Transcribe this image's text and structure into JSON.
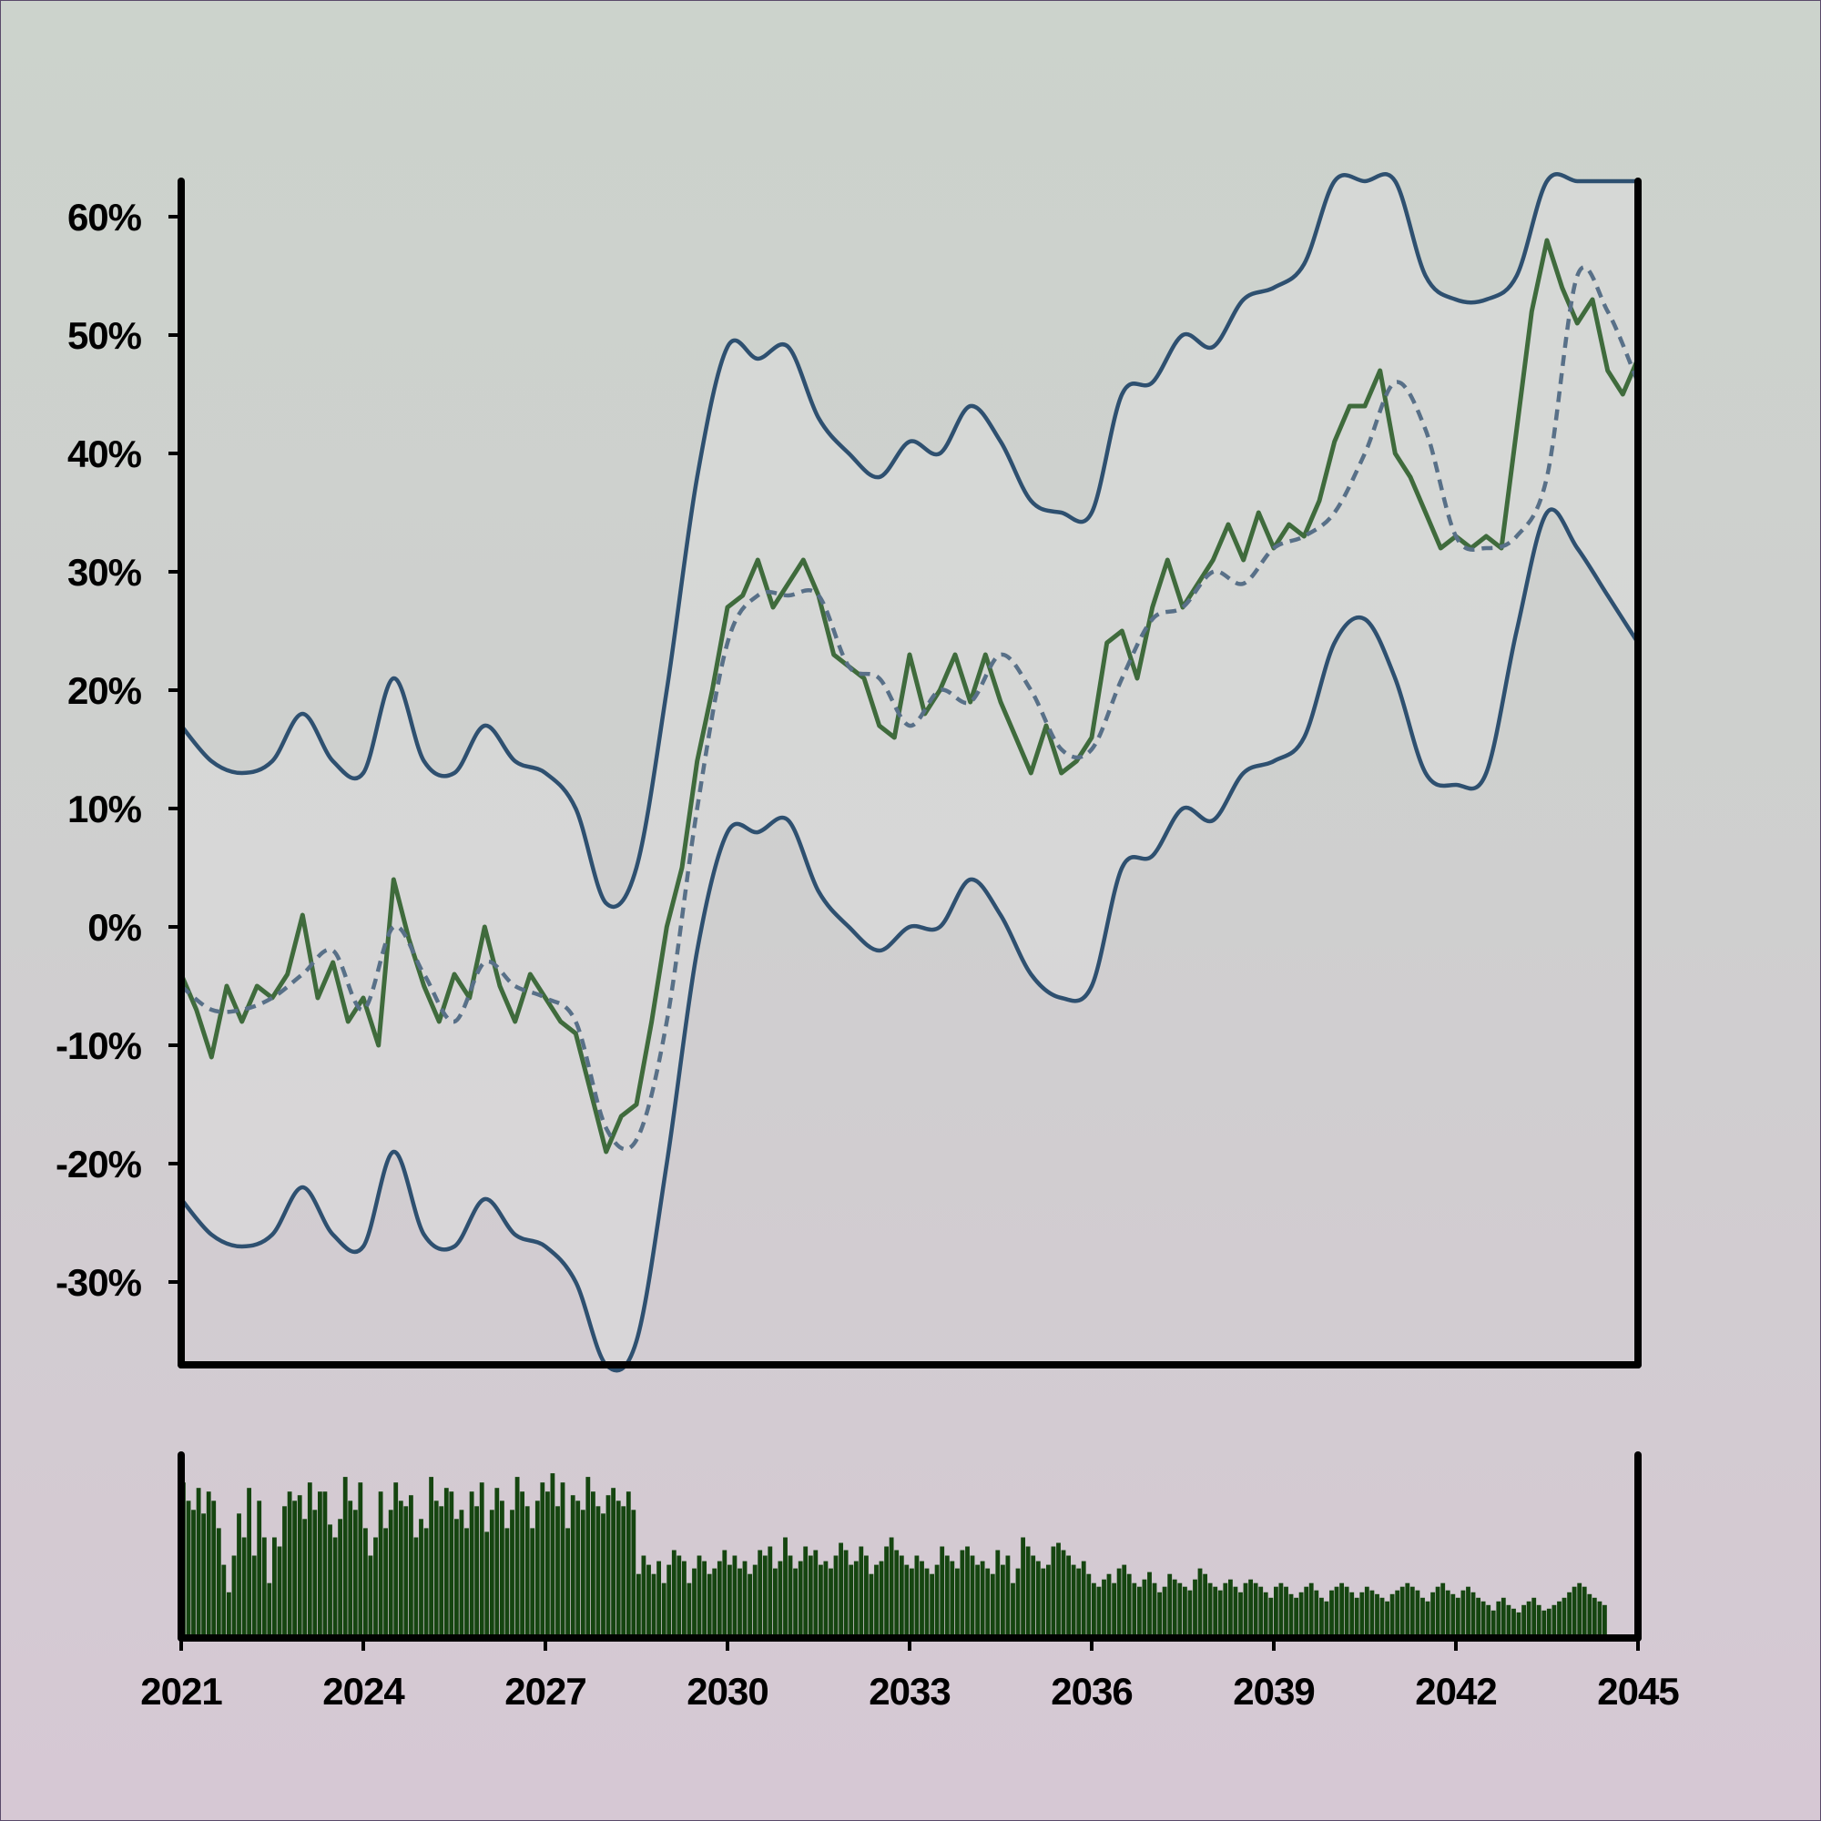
{
  "chart_data": [
    {
      "type": "line",
      "title": "",
      "xlabel": "",
      "ylabel": "",
      "xlim": [
        2021,
        2045
      ],
      "ylim": [
        -37,
        63
      ],
      "y_ticks": [
        {
          "value": 60,
          "label": "60%"
        },
        {
          "value": 50,
          "label": "50%"
        },
        {
          "value": 40,
          "label": "40%"
        },
        {
          "value": 30,
          "label": "30%"
        },
        {
          "value": 20,
          "label": "20%"
        },
        {
          "value": 10,
          "label": "10%"
        },
        {
          "value": 0,
          "label": "0%"
        },
        {
          "value": -10,
          "label": "-10%"
        },
        {
          "value": -20,
          "label": "-20%"
        },
        {
          "value": -30,
          "label": "-30%"
        }
      ],
      "grid": false,
      "legend": "none",
      "colors": {
        "value": "#3f6b3c",
        "moving_average": "#587088",
        "band": "#2e5070",
        "band_fill": "#dcdcdc"
      },
      "series": [
        {
          "style": "solid",
          "x": [
            2021.0,
            2021.25,
            2021.5,
            2021.75,
            2022.0,
            2022.25,
            2022.5,
            2022.75,
            2023.0,
            2023.25,
            2023.5,
            2023.75,
            2024.0,
            2024.25,
            2024.5,
            2024.75,
            2025.0,
            2025.25,
            2025.5,
            2025.75,
            2026.0,
            2026.25,
            2026.5,
            2026.75,
            2027.0,
            2027.25,
            2027.5,
            2027.75,
            2028.0,
            2028.25,
            2028.5,
            2028.75,
            2029.0,
            2029.25,
            2029.5,
            2029.75,
            2030.0,
            2030.25,
            2030.5,
            2030.75,
            2031.0,
            2031.25,
            2031.5,
            2031.75,
            2032.0,
            2032.25,
            2032.5,
            2032.75,
            2033.0,
            2033.25,
            2033.5,
            2033.75,
            2034.0,
            2034.25,
            2034.5,
            2034.75,
            2035.0,
            2035.25,
            2035.5,
            2035.75,
            2036.0,
            2036.25,
            2036.5,
            2036.75,
            2037.0,
            2037.25,
            2037.5,
            2037.75,
            2038.0,
            2038.25,
            2038.5,
            2038.75,
            2039.0,
            2039.25,
            2039.5,
            2039.75,
            2040.0,
            2040.25,
            2040.5,
            2040.75,
            2041.0,
            2041.25,
            2041.5,
            2041.75,
            2042.0,
            2042.25,
            2042.5,
            2042.75,
            2043.0,
            2043.25,
            2043.5,
            2043.75,
            2044.0,
            2044.25,
            2044.5,
            2044.75,
            2045.0
          ],
          "values": [
            -4,
            -7,
            -11,
            -5,
            -8,
            -5,
            -6,
            -4,
            1,
            -6,
            -3,
            -8,
            -6,
            -10,
            4,
            -1,
            -5,
            -8,
            -4,
            -6,
            0,
            -5,
            -8,
            -4,
            -6,
            -8,
            -9,
            -14,
            -19,
            -16,
            -15,
            -8,
            0,
            5,
            14,
            20,
            27,
            28,
            31,
            27,
            29,
            31,
            28,
            23,
            22,
            21,
            17,
            16,
            23,
            18,
            20,
            23,
            19,
            23,
            19,
            16,
            13,
            17,
            13,
            14,
            16,
            24,
            25,
            21,
            27,
            31,
            27,
            29,
            31,
            34,
            31,
            35,
            32,
            34,
            33,
            36,
            41,
            44,
            44,
            47,
            40,
            38,
            35,
            32,
            33,
            32,
            33,
            32,
            42,
            52,
            58,
            54,
            51,
            53,
            47,
            45,
            48
          ]
        },
        {
          "style": "dashed",
          "x": [
            2021.0,
            2021.5,
            2022.0,
            2022.5,
            2023.0,
            2023.5,
            2024.0,
            2024.5,
            2025.0,
            2025.5,
            2026.0,
            2026.5,
            2027.0,
            2027.5,
            2028.0,
            2028.5,
            2029.0,
            2029.5,
            2030.0,
            2030.5,
            2031.0,
            2031.5,
            2032.0,
            2032.5,
            2033.0,
            2033.5,
            2034.0,
            2034.5,
            2035.0,
            2035.5,
            2036.0,
            2036.5,
            2037.0,
            2037.5,
            2038.0,
            2038.5,
            2039.0,
            2039.5,
            2040.0,
            2040.5,
            2041.0,
            2041.5,
            2042.0,
            2042.5,
            2043.0,
            2043.5,
            2044.0,
            2044.5,
            2045.0
          ],
          "values": [
            -5,
            -7,
            -7,
            -6,
            -4,
            -2,
            -7,
            0,
            -4,
            -8,
            -3,
            -5,
            -6,
            -8,
            -17,
            -18,
            -8,
            10,
            24,
            28,
            28,
            28,
            22,
            21,
            17,
            20,
            19,
            23,
            20,
            15,
            15,
            21,
            26,
            27,
            30,
            29,
            32,
            33,
            35,
            40,
            46,
            42,
            33,
            32,
            33,
            38,
            55,
            52,
            46
          ]
        },
        {
          "style": "band-upper",
          "x": [
            2021.0,
            2021.5,
            2022.0,
            2022.5,
            2023.0,
            2023.5,
            2024.0,
            2024.5,
            2025.0,
            2025.5,
            2026.0,
            2026.5,
            2027.0,
            2027.5,
            2028.0,
            2028.5,
            2029.0,
            2029.5,
            2030.0,
            2030.5,
            2031.0,
            2031.5,
            2032.0,
            2032.5,
            2033.0,
            2033.5,
            2034.0,
            2034.5,
            2035.0,
            2035.5,
            2036.0,
            2036.5,
            2037.0,
            2037.5,
            2038.0,
            2038.5,
            2039.0,
            2039.5,
            2040.0,
            2040.5,
            2041.0,
            2041.5,
            2042.0,
            2042.5,
            2043.0,
            2043.5,
            2044.0,
            2044.5,
            2045.0
          ],
          "values": [
            17,
            14,
            13,
            14,
            18,
            14,
            13,
            21,
            14,
            13,
            17,
            14,
            13,
            10,
            2,
            5,
            20,
            38,
            49,
            48,
            49,
            43,
            40,
            38,
            41,
            40,
            44,
            41,
            36,
            35,
            35,
            45,
            46,
            50,
            49,
            53,
            54,
            56,
            63,
            63,
            63,
            55,
            53,
            53,
            55,
            63,
            63,
            63,
            63
          ]
        },
        {
          "style": "band-lower",
          "x": [
            2021.0,
            2021.5,
            2022.0,
            2022.5,
            2023.0,
            2023.5,
            2024.0,
            2024.5,
            2025.0,
            2025.5,
            2026.0,
            2026.5,
            2027.0,
            2027.5,
            2028.0,
            2028.5,
            2029.0,
            2029.5,
            2030.0,
            2030.5,
            2031.0,
            2031.5,
            2032.0,
            2032.5,
            2033.0,
            2033.5,
            2034.0,
            2034.5,
            2035.0,
            2035.5,
            2036.0,
            2036.5,
            2037.0,
            2037.5,
            2038.0,
            2038.5,
            2039.0,
            2039.5,
            2040.0,
            2040.5,
            2041.0,
            2041.5,
            2042.0,
            2042.5,
            2043.0,
            2043.5,
            2044.0,
            2044.5,
            2045.0
          ],
          "values": [
            -23,
            -26,
            -27,
            -26,
            -22,
            -26,
            -27,
            -19,
            -26,
            -27,
            -23,
            -26,
            -27,
            -30,
            -38,
            -35,
            -20,
            -2,
            8,
            8,
            9,
            3,
            0,
            -2,
            0,
            0,
            4,
            1,
            -4,
            -6,
            -5,
            5,
            6,
            10,
            9,
            13,
            14,
            16,
            24,
            26,
            21,
            13,
            12,
            13,
            25,
            35,
            32,
            28,
            24
          ]
        }
      ]
    },
    {
      "type": "bar",
      "title": "",
      "xlabel": "",
      "ylabel": "",
      "xlim": [
        2021,
        2045
      ],
      "ylim": [
        0,
        100
      ],
      "x_ticks": [
        "2021",
        "2024",
        "2027",
        "2030",
        "2033",
        "2036",
        "2039",
        "2042",
        "2045"
      ],
      "color": "#154510",
      "x_start": 2021,
      "x_step": 0.08333,
      "values": [
        85,
        75,
        70,
        82,
        68,
        80,
        75,
        60,
        40,
        25,
        45,
        68,
        55,
        82,
        45,
        75,
        55,
        30,
        55,
        50,
        72,
        80,
        75,
        78,
        65,
        85,
        70,
        80,
        80,
        62,
        55,
        65,
        88,
        75,
        70,
        85,
        60,
        45,
        55,
        80,
        60,
        70,
        85,
        75,
        72,
        78,
        55,
        65,
        60,
        88,
        75,
        72,
        82,
        80,
        65,
        70,
        60,
        80,
        72,
        85,
        58,
        70,
        82,
        75,
        60,
        70,
        88,
        80,
        72,
        60,
        75,
        85,
        80,
        90,
        72,
        85,
        60,
        78,
        75,
        70,
        88,
        80,
        72,
        68,
        78,
        82,
        75,
        72,
        80,
        70,
        35,
        45,
        40,
        35,
        42,
        30,
        40,
        48,
        45,
        42,
        30,
        38,
        45,
        42,
        35,
        38,
        42,
        48,
        40,
        45,
        38,
        42,
        35,
        40,
        48,
        45,
        50,
        38,
        42,
        55,
        45,
        38,
        42,
        50,
        45,
        48,
        40,
        42,
        38,
        45,
        52,
        48,
        40,
        42,
        50,
        45,
        35,
        40,
        42,
        50,
        55,
        48,
        45,
        40,
        38,
        45,
        42,
        38,
        35,
        40,
        50,
        45,
        42,
        38,
        48,
        50,
        45,
        40,
        42,
        38,
        35,
        48,
        40,
        45,
        30,
        38,
        55,
        50,
        45,
        42,
        38,
        40,
        50,
        52,
        48,
        45,
        40,
        38,
        42,
        35,
        30,
        28,
        32,
        35,
        30,
        38,
        40,
        35,
        30,
        28,
        32,
        36,
        30,
        25,
        28,
        35,
        32,
        30,
        28,
        26,
        32,
        38,
        35,
        30,
        28,
        26,
        30,
        32,
        28,
        25,
        30,
        32,
        30,
        28,
        25,
        22,
        28,
        30,
        28,
        24,
        22,
        25,
        28,
        30,
        26,
        22,
        20,
        26,
        28,
        30,
        28,
        25,
        22,
        25,
        28,
        26,
        24,
        22,
        20,
        24,
        26,
        28,
        30,
        28,
        26,
        22,
        20,
        25,
        28,
        30,
        26,
        24,
        22,
        26,
        28,
        25,
        22,
        20,
        18,
        15,
        20,
        22,
        18,
        16,
        14,
        18,
        20,
        22,
        18,
        15,
        16,
        18,
        20,
        22,
        25,
        28,
        30,
        28,
        24,
        22,
        20,
        18
      ]
    }
  ]
}
